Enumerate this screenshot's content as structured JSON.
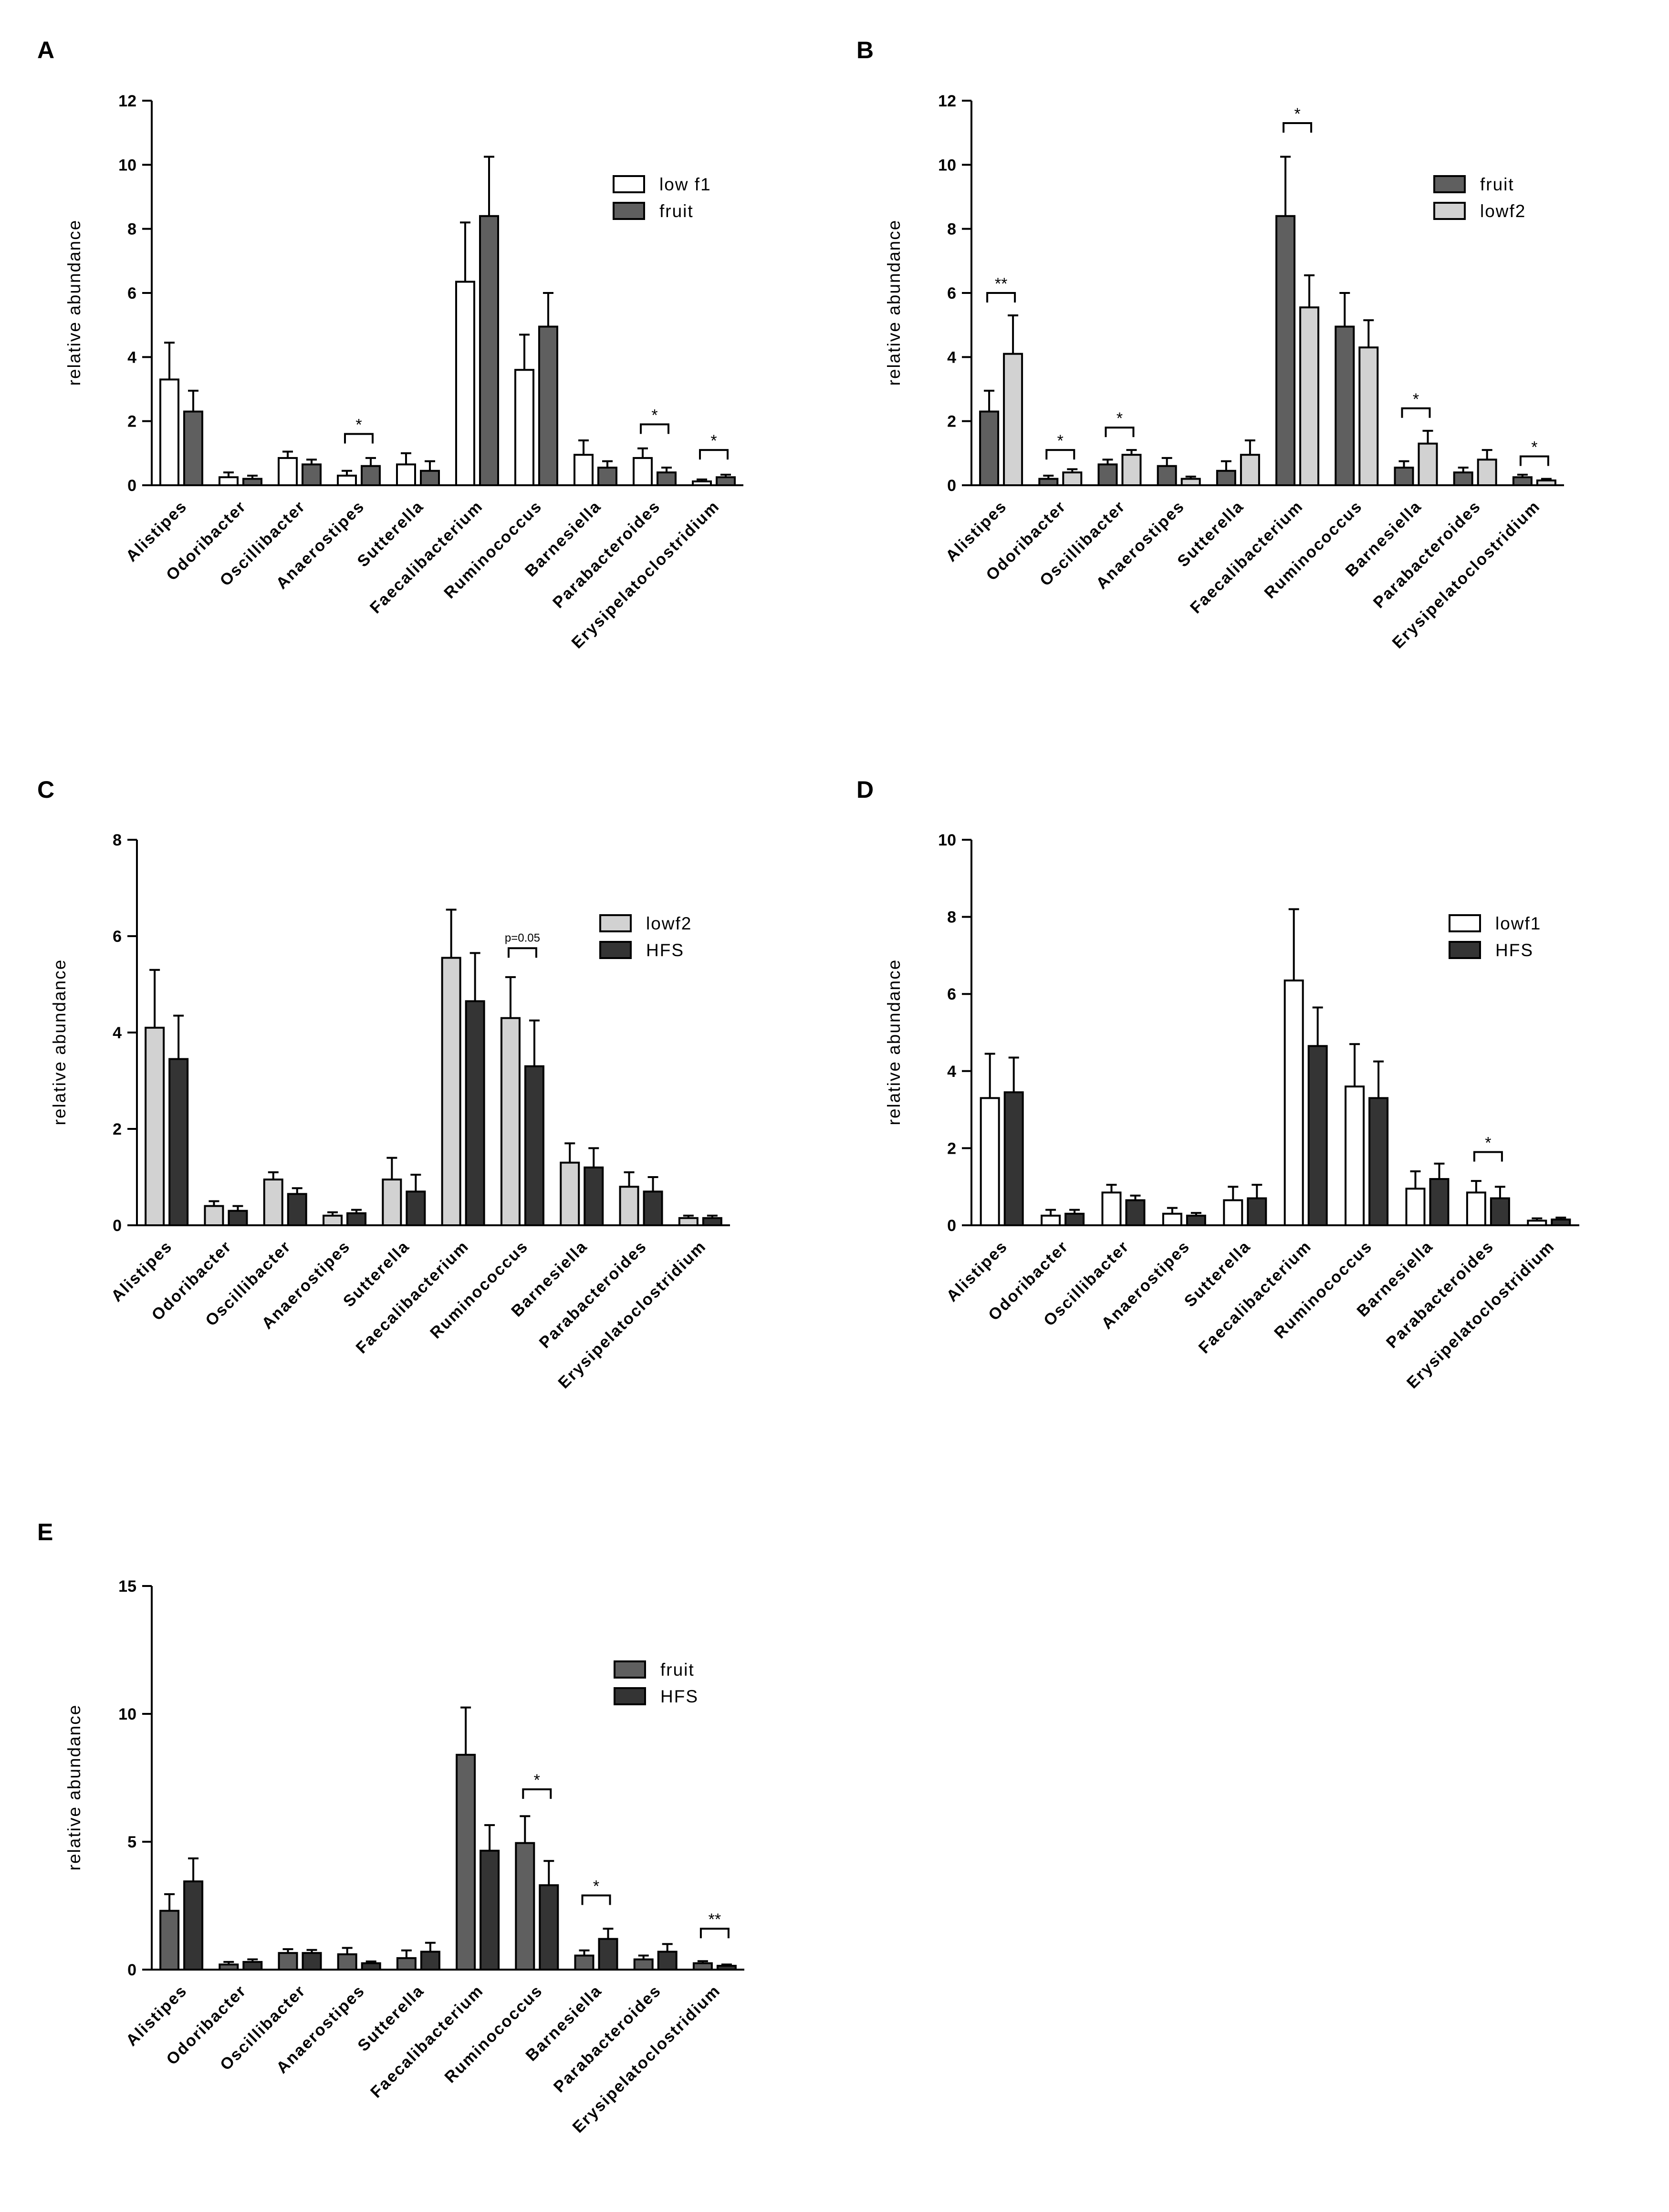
{
  "colors": {
    "low f1": "#ffffff",
    "lowf1": "#ffffff",
    "fruit": "#5f5f5f",
    "lowf2": "#d2d2d2",
    "HFS": "#343434"
  },
  "chart_data": [
    {
      "panel": "A",
      "type": "bar",
      "ylabel": "relative abundance",
      "ylim": [
        0,
        12
      ],
      "yticks": [
        0,
        2,
        4,
        6,
        8,
        10,
        12
      ],
      "categories": [
        "Alistipes",
        "Odoribacter",
        "Oscillibacter",
        "Anaerostipes",
        "Sutterella",
        "Faecalibacterium",
        "Ruminococcus",
        "Barnesiella",
        "Parabacteroides",
        "Erysipelatoclostridium"
      ],
      "series": [
        {
          "name": "low f1",
          "values": [
            3.3,
            0.25,
            0.85,
            0.3,
            0.65,
            6.35,
            3.6,
            0.95,
            0.85,
            0.12
          ],
          "errors": [
            1.15,
            0.15,
            0.2,
            0.15,
            0.35,
            1.85,
            1.1,
            0.45,
            0.3,
            0.06
          ]
        },
        {
          "name": "fruit",
          "values": [
            2.3,
            0.2,
            0.65,
            0.6,
            0.45,
            8.4,
            4.95,
            0.55,
            0.4,
            0.25
          ],
          "errors": [
            0.65,
            0.1,
            0.15,
            0.25,
            0.3,
            1.85,
            1.05,
            0.2,
            0.15,
            0.08
          ]
        }
      ],
      "annotations": [
        {
          "category": "Anaerostipes",
          "text": "*",
          "y": 1.6
        },
        {
          "category": "Parabacteroides",
          "text": "*",
          "y": 1.9
        },
        {
          "category": "Erysipelatoclostridium",
          "text": "*",
          "y": 1.1
        }
      ]
    },
    {
      "panel": "B",
      "type": "bar",
      "ylabel": "relative abundance",
      "ylim": [
        0,
        12
      ],
      "yticks": [
        0,
        2,
        4,
        6,
        8,
        10,
        12
      ],
      "categories": [
        "Alistipes",
        "Odoribacter",
        "Oscillibacter",
        "Anaerostipes",
        "Sutterella",
        "Faecalibacterium",
        "Ruminococcus",
        "Barnesiella",
        "Parabacteroides",
        "Erysipelatoclostridium"
      ],
      "series": [
        {
          "name": "fruit",
          "values": [
            2.3,
            0.2,
            0.65,
            0.6,
            0.45,
            8.4,
            4.95,
            0.55,
            0.4,
            0.25
          ],
          "errors": [
            0.65,
            0.1,
            0.15,
            0.25,
            0.3,
            1.85,
            1.05,
            0.2,
            0.15,
            0.08
          ]
        },
        {
          "name": "lowf2",
          "values": [
            4.1,
            0.4,
            0.95,
            0.2,
            0.95,
            5.55,
            4.3,
            1.3,
            0.8,
            0.15
          ],
          "errors": [
            1.2,
            0.1,
            0.15,
            0.07,
            0.45,
            1.0,
            0.85,
            0.4,
            0.3,
            0.05
          ]
        }
      ],
      "annotations": [
        {
          "category": "Alistipes",
          "text": "**",
          "y": 6.0
        },
        {
          "category": "Odoribacter",
          "text": "*",
          "y": 1.1
        },
        {
          "category": "Oscillibacter",
          "text": "*",
          "y": 1.8
        },
        {
          "category": "Faecalibacterium",
          "text": "*",
          "y": 11.3
        },
        {
          "category": "Barnesiella",
          "text": "*",
          "y": 2.4
        },
        {
          "category": "Erysipelatoclostridium",
          "text": "*",
          "y": 0.9
        }
      ]
    },
    {
      "panel": "C",
      "type": "bar",
      "ylabel": "relative abundance",
      "ylim": [
        0,
        8
      ],
      "yticks": [
        0,
        2,
        4,
        6,
        8
      ],
      "categories": [
        "Alistipes",
        "Odoribacter",
        "Oscillibacter",
        "Anaerostipes",
        "Sutterella",
        "Faecalibacterium",
        "Ruminococcus",
        "Barnesiella",
        "Parabacteroides",
        "Erysipelatoclostridium"
      ],
      "series": [
        {
          "name": "lowf2",
          "values": [
            4.1,
            0.4,
            0.95,
            0.2,
            0.95,
            5.55,
            4.3,
            1.3,
            0.8,
            0.15
          ],
          "errors": [
            1.2,
            0.1,
            0.15,
            0.07,
            0.45,
            1.0,
            0.85,
            0.4,
            0.3,
            0.05
          ]
        },
        {
          "name": "HFS",
          "values": [
            3.45,
            0.3,
            0.65,
            0.25,
            0.7,
            4.65,
            3.3,
            1.2,
            0.7,
            0.15
          ],
          "errors": [
            0.9,
            0.1,
            0.12,
            0.07,
            0.35,
            1.0,
            0.95,
            0.4,
            0.3,
            0.05
          ]
        }
      ],
      "annotations": [
        {
          "category": "Ruminococcus",
          "text": "p=0.05",
          "y": 5.75
        }
      ]
    },
    {
      "panel": "D",
      "type": "bar",
      "ylabel": "relative abundance",
      "ylim": [
        0,
        10
      ],
      "yticks": [
        0,
        2,
        4,
        6,
        8,
        10
      ],
      "categories": [
        "Alistipes",
        "Odoribacter",
        "Oscillibacter",
        "Anaerostipes",
        "Sutterella",
        "Faecalibacterium",
        "Ruminococcus",
        "Barnesiella",
        "Parabacteroides",
        "Erysipelatoclostridium"
      ],
      "series": [
        {
          "name": "lowf1",
          "values": [
            3.3,
            0.25,
            0.85,
            0.3,
            0.65,
            6.35,
            3.6,
            0.95,
            0.85,
            0.12
          ],
          "errors": [
            1.15,
            0.15,
            0.2,
            0.15,
            0.35,
            1.85,
            1.1,
            0.45,
            0.3,
            0.06
          ]
        },
        {
          "name": "HFS",
          "values": [
            3.45,
            0.3,
            0.65,
            0.25,
            0.7,
            4.65,
            3.3,
            1.2,
            0.7,
            0.15
          ],
          "errors": [
            0.9,
            0.1,
            0.12,
            0.07,
            0.35,
            1.0,
            0.95,
            0.4,
            0.3,
            0.05
          ]
        }
      ],
      "annotations": [
        {
          "category": "Parabacteroides",
          "text": "*",
          "y": 1.9
        }
      ]
    },
    {
      "panel": "E",
      "type": "bar",
      "ylabel": "relative abundance",
      "ylim": [
        0,
        15
      ],
      "yticks": [
        0,
        5,
        10,
        15
      ],
      "categories": [
        "Alistipes",
        "Odoribacter",
        "Oscillibacter",
        "Anaerostipes",
        "Sutterella",
        "Faecalibacterium",
        "Ruminococcus",
        "Barnesiella",
        "Parabacteroides",
        "Erysipelatoclostridium"
      ],
      "series": [
        {
          "name": "fruit",
          "values": [
            2.3,
            0.2,
            0.65,
            0.6,
            0.45,
            8.4,
            4.95,
            0.55,
            0.4,
            0.25
          ],
          "errors": [
            0.65,
            0.1,
            0.15,
            0.25,
            0.3,
            1.85,
            1.05,
            0.2,
            0.15,
            0.08
          ]
        },
        {
          "name": "HFS",
          "values": [
            3.45,
            0.3,
            0.65,
            0.25,
            0.7,
            4.65,
            3.3,
            1.2,
            0.7,
            0.15
          ],
          "errors": [
            0.9,
            0.1,
            0.12,
            0.07,
            0.35,
            1.0,
            0.95,
            0.4,
            0.3,
            0.05
          ]
        }
      ],
      "annotations": [
        {
          "category": "Ruminococcus",
          "text": "*",
          "y": 7.05
        },
        {
          "category": "Barnesiella",
          "text": "*",
          "y": 2.9
        },
        {
          "category": "Erysipelatoclostridium",
          "text": "**",
          "y": 1.6
        }
      ]
    }
  ]
}
